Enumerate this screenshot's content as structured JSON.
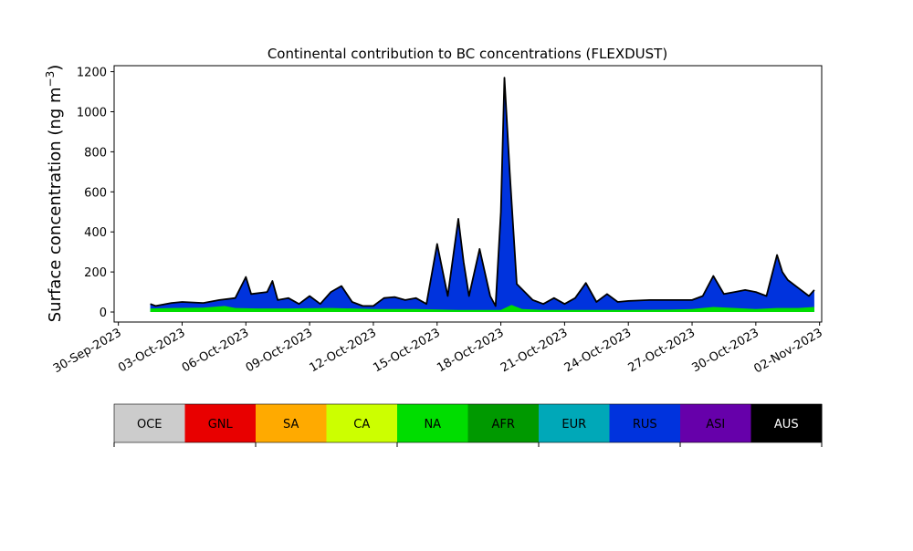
{
  "chart_data": {
    "type": "area",
    "title": "Continental contribution to BC concentrations (FLEXDUST)",
    "ylabel_main": "Surface concentration (ng m",
    "ylabel_sup": "−3",
    "ylabel_close": ")",
    "xlabel": "",
    "x_start": "2023-09-30",
    "x_end": "2023-11-02",
    "ylim": [
      -50,
      1230
    ],
    "yticks": [
      0,
      200,
      400,
      600,
      800,
      1000,
      1200
    ],
    "ytick_labels": [
      "0",
      "200",
      "400",
      "600",
      "800",
      "1000",
      "1200"
    ],
    "xtick_dates": [
      "2023-09-30",
      "2023-10-03",
      "2023-10-06",
      "2023-10-09",
      "2023-10-12",
      "2023-10-15",
      "2023-10-18",
      "2023-10-21",
      "2023-10-24",
      "2023-10-27",
      "2023-10-30",
      "2023-11-02"
    ],
    "xtick_labels": [
      "30-Sep-2023",
      "03-Oct-2023",
      "06-Oct-2023",
      "09-Oct-2023",
      "12-Oct-2023",
      "15-Oct-2023",
      "18-Oct-2023",
      "21-Oct-2023",
      "24-Oct-2023",
      "27-Oct-2023",
      "30-Oct-2023",
      "02-Nov-2023"
    ],
    "grid": false,
    "series": [
      {
        "name": "NA",
        "color": "#00dd00",
        "points": [
          [
            "2023-10-01T12:00",
            18
          ],
          [
            "2023-10-02T12:00",
            20
          ],
          [
            "2023-10-04T00:00",
            22
          ],
          [
            "2023-10-05T00:00",
            30
          ],
          [
            "2023-10-05T12:00",
            20
          ],
          [
            "2023-10-06T12:00",
            18
          ],
          [
            "2023-10-08T00:00",
            18
          ],
          [
            "2023-10-10T00:00",
            20
          ],
          [
            "2023-10-12T00:00",
            15
          ],
          [
            "2023-10-14T00:00",
            15
          ],
          [
            "2023-10-16T00:00",
            10
          ],
          [
            "2023-10-18T00:00",
            10
          ],
          [
            "2023-10-18T12:00",
            35
          ],
          [
            "2023-10-19T00:00",
            15
          ],
          [
            "2023-10-20T00:00",
            10
          ],
          [
            "2023-10-22T00:00",
            10
          ],
          [
            "2023-10-24T00:00",
            10
          ],
          [
            "2023-10-26T00:00",
            12
          ],
          [
            "2023-10-27T00:00",
            15
          ],
          [
            "2023-10-28T00:00",
            25
          ],
          [
            "2023-10-30T00:00",
            15
          ],
          [
            "2023-10-31T00:00",
            20
          ],
          [
            "2023-11-01T00:00",
            20
          ],
          [
            "2023-11-01T18:00",
            25
          ]
        ]
      },
      {
        "name": "RUS",
        "color": "#0033dd",
        "points": [
          [
            "2023-10-01T12:00",
            40
          ],
          [
            "2023-10-01T18:00",
            30
          ],
          [
            "2023-10-02T12:00",
            45
          ],
          [
            "2023-10-03T00:00",
            50
          ],
          [
            "2023-10-04T00:00",
            45
          ],
          [
            "2023-10-04T18:00",
            60
          ],
          [
            "2023-10-05T12:00",
            70
          ],
          [
            "2023-10-06T00:00",
            175
          ],
          [
            "2023-10-06T06:00",
            90
          ],
          [
            "2023-10-07T00:00",
            100
          ],
          [
            "2023-10-07T06:00",
            155
          ],
          [
            "2023-10-07T12:00",
            60
          ],
          [
            "2023-10-08T00:00",
            70
          ],
          [
            "2023-10-08T12:00",
            40
          ],
          [
            "2023-10-09T00:00",
            80
          ],
          [
            "2023-10-09T12:00",
            40
          ],
          [
            "2023-10-10T00:00",
            100
          ],
          [
            "2023-10-10T12:00",
            130
          ],
          [
            "2023-10-11T00:00",
            50
          ],
          [
            "2023-10-11T12:00",
            30
          ],
          [
            "2023-10-12T00:00",
            30
          ],
          [
            "2023-10-12T12:00",
            70
          ],
          [
            "2023-10-13T00:00",
            75
          ],
          [
            "2023-10-13T12:00",
            60
          ],
          [
            "2023-10-14T00:00",
            70
          ],
          [
            "2023-10-14T12:00",
            40
          ],
          [
            "2023-10-15T00:00",
            340
          ],
          [
            "2023-10-15T12:00",
            80
          ],
          [
            "2023-10-16T00:00",
            465
          ],
          [
            "2023-10-16T06:00",
            250
          ],
          [
            "2023-10-16T12:00",
            80
          ],
          [
            "2023-10-17T00:00",
            315
          ],
          [
            "2023-10-17T12:00",
            80
          ],
          [
            "2023-10-17T18:00",
            30
          ],
          [
            "2023-10-18T00:00",
            500
          ],
          [
            "2023-10-18T04:00",
            1170
          ],
          [
            "2023-10-18T10:00",
            700
          ],
          [
            "2023-10-18T18:00",
            140
          ],
          [
            "2023-10-19T12:00",
            60
          ],
          [
            "2023-10-20T00:00",
            40
          ],
          [
            "2023-10-20T12:00",
            70
          ],
          [
            "2023-10-21T00:00",
            40
          ],
          [
            "2023-10-21T12:00",
            70
          ],
          [
            "2023-10-22T00:00",
            145
          ],
          [
            "2023-10-22T12:00",
            50
          ],
          [
            "2023-10-23T00:00",
            90
          ],
          [
            "2023-10-23T12:00",
            50
          ],
          [
            "2023-10-24T00:00",
            55
          ],
          [
            "2023-10-25T00:00",
            60
          ],
          [
            "2023-10-26T00:00",
            60
          ],
          [
            "2023-10-27T00:00",
            60
          ],
          [
            "2023-10-27T12:00",
            80
          ],
          [
            "2023-10-28T00:00",
            180
          ],
          [
            "2023-10-28T12:00",
            90
          ],
          [
            "2023-10-29T00:00",
            100
          ],
          [
            "2023-10-29T12:00",
            110
          ],
          [
            "2023-10-30T00:00",
            100
          ],
          [
            "2023-10-30T12:00",
            80
          ],
          [
            "2023-10-31T00:00",
            285
          ],
          [
            "2023-10-31T06:00",
            200
          ],
          [
            "2023-10-31T12:00",
            160
          ],
          [
            "2023-11-01T00:00",
            120
          ],
          [
            "2023-11-01T12:00",
            80
          ],
          [
            "2023-11-01T18:00",
            110
          ]
        ]
      }
    ],
    "legend": [
      {
        "label": "OCE",
        "color": "#cccccc",
        "text_color": "#000000"
      },
      {
        "label": "GNL",
        "color": "#e80000",
        "text_color": "#000000"
      },
      {
        "label": "SA",
        "color": "#ffaa00",
        "text_color": "#000000"
      },
      {
        "label": "CA",
        "color": "#ccff00",
        "text_color": "#000000"
      },
      {
        "label": "NA",
        "color": "#00dd00",
        "text_color": "#000000"
      },
      {
        "label": "AFR",
        "color": "#009900",
        "text_color": "#000000"
      },
      {
        "label": "EUR",
        "color": "#00a8b8",
        "text_color": "#000000"
      },
      {
        "label": "RUS",
        "color": "#0033dd",
        "text_color": "#000000"
      },
      {
        "label": "ASI",
        "color": "#6600aa",
        "text_color": "#000000"
      },
      {
        "label": "AUS",
        "color": "#000000",
        "text_color": "#ffffff"
      }
    ]
  }
}
